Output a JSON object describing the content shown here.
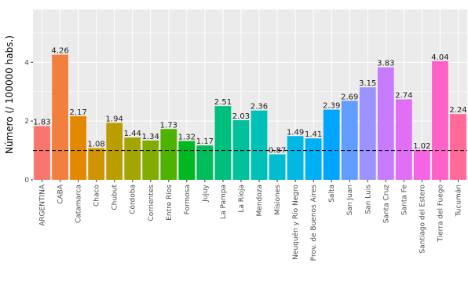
{
  "chart_data": {
    "type": "bar",
    "categories": [
      "ARGENTINA",
      "CABA",
      "Catamarca",
      "Chaco",
      "Chubut",
      "Córdoba",
      "Corrientes",
      "Entre Ríos",
      "Formosa",
      "Jujuy",
      "La Pampa",
      "La Rioja",
      "Mendoza",
      "Misiones",
      "Neuquén y Río Negro",
      "Prov. de Buenos Aires",
      "Salta",
      "San Juan",
      "San Luis",
      "Santa Cruz",
      "Santa Fe",
      "Santiago del Estero",
      "Tierra del Fuego",
      "Tucumán"
    ],
    "values": [
      1.83,
      4.26,
      2.17,
      1.08,
      1.94,
      1.44,
      1.34,
      1.73,
      1.32,
      1.17,
      2.51,
      2.03,
      2.36,
      0.87,
      1.49,
      1.41,
      2.39,
      2.69,
      3.15,
      3.83,
      2.74,
      1.02,
      4.04,
      2.24
    ],
    "value_labels": [
      "1.83",
      "4.26",
      "2.17",
      "1.08",
      "1.94",
      "1.44",
      "1.34",
      "1.73",
      "1.32",
      "1.17",
      "2.51",
      "2.03",
      "2.36",
      "0.87",
      "1.49",
      "1.41",
      "2.39",
      "2.69",
      "3.15",
      "3.83",
      "2.74",
      "1.02",
      "4.04",
      "2.24"
    ],
    "colors": [
      "#F8766D",
      "#F17F3E",
      "#E38900",
      "#D09400",
      "#BA9E00",
      "#A3A500",
      "#82AC00",
      "#4DB300",
      "#00B81F",
      "#00BC59",
      "#00BF7D",
      "#00C19B",
      "#00C1B7",
      "#00BECF",
      "#00B8E4",
      "#00B0F5",
      "#00A5FF",
      "#619CFF",
      "#9D93FF",
      "#C77CFF",
      "#E36EF6",
      "#F564E3",
      "#FF61C9",
      "#FF6A98"
    ],
    "ylabel": "Número (/ 100000 habs.)",
    "ylim": [
      0,
      5.8
    ],
    "yticks": [
      0,
      2,
      4
    ],
    "ytick_labels": [
      "0",
      "2",
      "4"
    ],
    "reference_line": 1,
    "reference_line_style": "dashed",
    "grid": true,
    "panel_background": "#EBEBEB",
    "grid_color": "#FFFFFF"
  }
}
